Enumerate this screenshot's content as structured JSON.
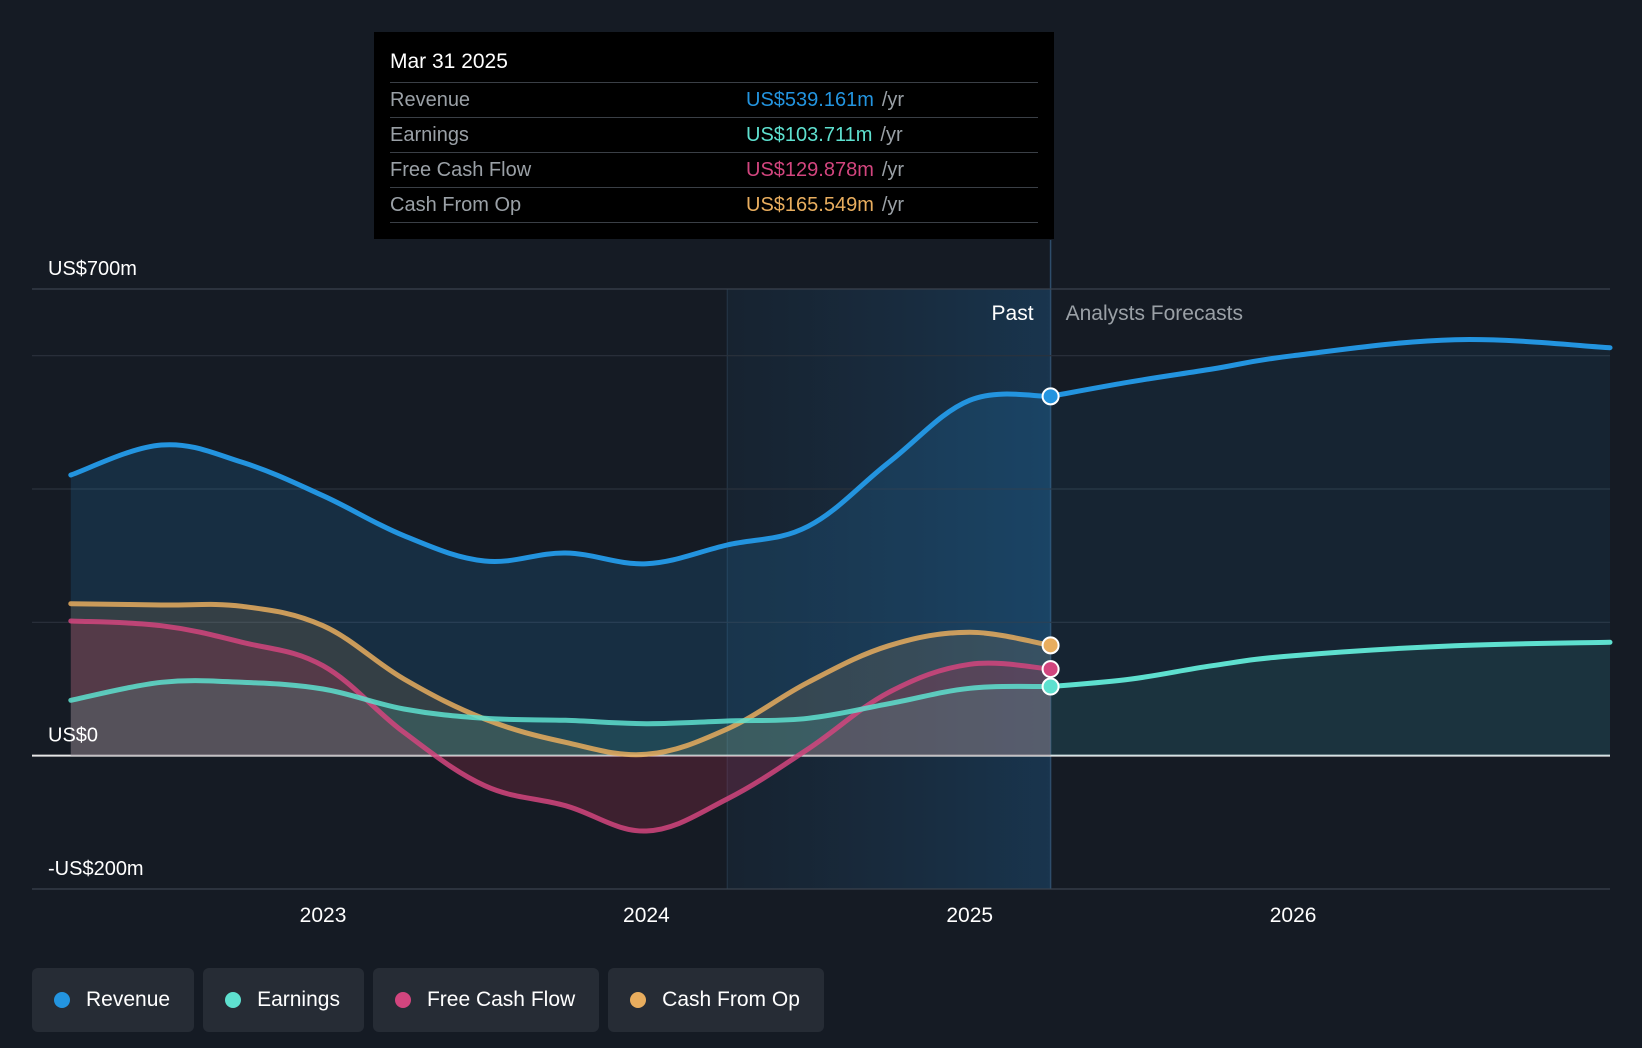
{
  "colors": {
    "background": "#151b24",
    "revenue": "#2394df",
    "earnings": "#5ee0cf",
    "free_cash_flow": "#d2457e",
    "cash_from_op": "#e8ad5e",
    "grid": "#2b323c",
    "zero_line": "#e6e6e6"
  },
  "tooltip": {
    "date": "Mar 31 2025",
    "unit": "/yr",
    "rows": [
      {
        "label": "Revenue",
        "value": "US$539.161m",
        "color": "#2394df"
      },
      {
        "label": "Earnings",
        "value": "US$103.711m",
        "color": "#5ee0cf"
      },
      {
        "label": "Free Cash Flow",
        "value": "US$129.878m",
        "color": "#d2457e"
      },
      {
        "label": "Cash From Op",
        "value": "US$165.549m",
        "color": "#e8ad5e"
      }
    ]
  },
  "region_labels": {
    "past": "Past",
    "forecast": "Analysts Forecasts"
  },
  "legend": [
    {
      "label": "Revenue",
      "color": "#2394df"
    },
    {
      "label": "Earnings",
      "color": "#5ee0cf"
    },
    {
      "label": "Free Cash Flow",
      "color": "#d2457e"
    },
    {
      "label": "Cash From Op",
      "color": "#e8ad5e"
    }
  ],
  "chart_data": {
    "type": "area",
    "title": "",
    "xlabel": "",
    "ylabel": "",
    "xlim": [
      2022.1,
      2026.98
    ],
    "ylim": [
      -200,
      700
    ],
    "y_tick_values": [
      700,
      0,
      -200
    ],
    "y_tick_labels": [
      "US$700m",
      "US$0",
      "-US$200m"
    ],
    "y_gridlines": [
      700,
      600,
      400,
      200,
      0,
      -200
    ],
    "x_tick_values": [
      2023,
      2024,
      2025,
      2026
    ],
    "x_tick_labels": [
      "2023",
      "2024",
      "2025",
      "2026"
    ],
    "highlight_start": 2024.25,
    "past_end": 2025.25,
    "series": [
      {
        "name": "Revenue",
        "points": [
          [
            2022.22,
            421
          ],
          [
            2022.5,
            466
          ],
          [
            2022.75,
            440
          ],
          [
            2023.0,
            390
          ],
          [
            2023.25,
            330
          ],
          [
            2023.5,
            292
          ],
          [
            2023.75,
            304
          ],
          [
            2024.0,
            288
          ],
          [
            2024.25,
            316
          ],
          [
            2024.5,
            344
          ],
          [
            2024.75,
            440
          ],
          [
            2025.0,
            533
          ],
          [
            2025.25,
            539
          ]
        ],
        "forecast": [
          [
            2025.25,
            539
          ],
          [
            2025.5,
            561
          ],
          [
            2025.75,
            580
          ],
          [
            2026.0,
            600
          ],
          [
            2026.5,
            624
          ],
          [
            2026.98,
            612
          ]
        ]
      },
      {
        "name": "Earnings",
        "points": [
          [
            2022.22,
            83
          ],
          [
            2022.5,
            110
          ],
          [
            2022.75,
            110
          ],
          [
            2023.0,
            100
          ],
          [
            2023.25,
            70
          ],
          [
            2023.5,
            56
          ],
          [
            2023.75,
            53
          ],
          [
            2024.0,
            48
          ],
          [
            2024.25,
            52
          ],
          [
            2024.5,
            56
          ],
          [
            2024.75,
            78
          ],
          [
            2025.0,
            101
          ],
          [
            2025.25,
            103.7
          ]
        ],
        "forecast": [
          [
            2025.25,
            103.7
          ],
          [
            2025.5,
            115
          ],
          [
            2025.75,
            135
          ],
          [
            2026.0,
            150
          ],
          [
            2026.5,
            165
          ],
          [
            2026.98,
            170
          ]
        ]
      },
      {
        "name": "Free Cash Flow",
        "points": [
          [
            2022.22,
            202
          ],
          [
            2022.5,
            195
          ],
          [
            2022.75,
            170
          ],
          [
            2023.0,
            135
          ],
          [
            2023.25,
            35
          ],
          [
            2023.5,
            -45
          ],
          [
            2023.75,
            -75
          ],
          [
            2024.0,
            -113
          ],
          [
            2024.25,
            -65
          ],
          [
            2024.5,
            10
          ],
          [
            2024.75,
            95
          ],
          [
            2025.0,
            137
          ],
          [
            2025.25,
            129.9
          ]
        ]
      },
      {
        "name": "Cash From Op",
        "points": [
          [
            2022.22,
            228
          ],
          [
            2022.5,
            226
          ],
          [
            2022.75,
            224
          ],
          [
            2023.0,
            195
          ],
          [
            2023.25,
            115
          ],
          [
            2023.5,
            55
          ],
          [
            2023.75,
            20
          ],
          [
            2024.0,
            2
          ],
          [
            2024.25,
            40
          ],
          [
            2024.5,
            110
          ],
          [
            2024.75,
            165
          ],
          [
            2025.0,
            185
          ],
          [
            2025.25,
            165.5
          ]
        ]
      }
    ]
  }
}
